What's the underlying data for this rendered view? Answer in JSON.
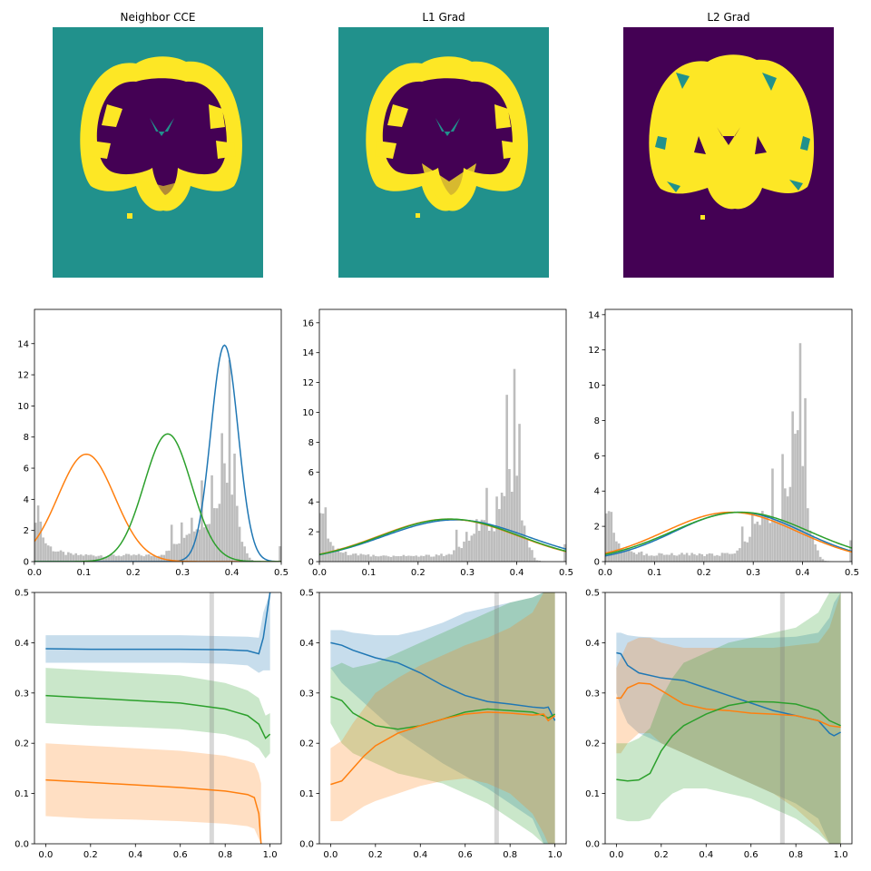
{
  "colors": {
    "blue": "#1f77b4",
    "orange": "#ff7f0e",
    "green": "#2ca02c",
    "hist": "#bdbdbd",
    "teal": "#21918c",
    "purple": "#440154",
    "yellow": "#fde725"
  },
  "images": [
    {
      "title": "Neighbor CCE",
      "background": "teal"
    },
    {
      "title": "L1 Grad",
      "background": "teal"
    },
    {
      "title": "L2 Grad",
      "background": "purple"
    }
  ],
  "chart_data": [
    {
      "type": "histogram",
      "panel": "Neighbor CCE",
      "xlim": [
        0,
        0.5
      ],
      "ylim": [
        0,
        16.2
      ],
      "xticks": [
        "0.0",
        "0.1",
        "0.2",
        "0.3",
        "0.4",
        "0.5"
      ],
      "yticks": [
        "0",
        "2",
        "4",
        "6",
        "8",
        "10",
        "12",
        "14"
      ],
      "gaussians": [
        {
          "color": "blue",
          "mean": 0.385,
          "sd": 0.0275,
          "peak": 13.9
        },
        {
          "color": "orange",
          "mean": 0.105,
          "sd": 0.0575,
          "peak": 6.9
        },
        {
          "color": "green",
          "mean": 0.27,
          "sd": 0.048,
          "peak": 8.2
        }
      ]
    },
    {
      "type": "histogram",
      "panel": "L1 Grad",
      "xlim": [
        0,
        0.5
      ],
      "ylim": [
        0,
        16.9
      ],
      "xticks": [
        "0.0",
        "0.1",
        "0.2",
        "0.3",
        "0.4",
        "0.5"
      ],
      "yticks": [
        "0",
        "2",
        "4",
        "6",
        "8",
        "10",
        "12",
        "14",
        "16"
      ],
      "gaussians": [
        {
          "color": "blue",
          "mean": 0.275,
          "sd": 0.145,
          "peak": 2.8
        },
        {
          "color": "orange",
          "mean": 0.262,
          "sd": 0.14,
          "peak": 2.85
        },
        {
          "color": "green",
          "mean": 0.265,
          "sd": 0.14,
          "peak": 2.85
        }
      ]
    },
    {
      "type": "histogram",
      "panel": "L2 Grad",
      "xlim": [
        0,
        0.5
      ],
      "ylim": [
        0,
        14.3
      ],
      "xticks": [
        "0.0",
        "0.1",
        "0.2",
        "0.3",
        "0.4",
        "0.5"
      ],
      "yticks": [
        "0",
        "2",
        "4",
        "6",
        "8",
        "10",
        "12",
        "14"
      ],
      "gaussians": [
        {
          "color": "blue",
          "mean": 0.27,
          "sd": 0.13,
          "peak": 2.8
        },
        {
          "color": "orange",
          "mean": 0.255,
          "sd": 0.135,
          "peak": 2.8
        },
        {
          "color": "green",
          "mean": 0.275,
          "sd": 0.14,
          "peak": 2.8
        }
      ]
    },
    {
      "type": "line",
      "panel": "Neighbor CCE",
      "xlim": [
        -0.05,
        1.05
      ],
      "ylim": [
        0,
        0.5
      ],
      "xticks": [
        "0.0",
        "0.2",
        "0.4",
        "0.6",
        "0.8",
        "1.0"
      ],
      "yticks": [
        "0.0",
        "0.1",
        "0.2",
        "0.3",
        "0.4",
        "0.5"
      ],
      "vline": 0.74,
      "series": [
        {
          "color": "blue",
          "x": [
            0,
            0.2,
            0.4,
            0.6,
            0.8,
            0.9,
            0.95,
            0.97,
            1.0
          ],
          "y": [
            0.388,
            0.387,
            0.387,
            0.387,
            0.386,
            0.384,
            0.378,
            0.41,
            0.5
          ],
          "lo": [
            0.36,
            0.36,
            0.36,
            0.36,
            0.358,
            0.355,
            0.34,
            0.345,
            0.345
          ],
          "hi": [
            0.415,
            0.415,
            0.415,
            0.415,
            0.413,
            0.412,
            0.41,
            0.46,
            0.5
          ]
        },
        {
          "color": "green",
          "x": [
            0,
            0.2,
            0.4,
            0.6,
            0.8,
            0.9,
            0.95,
            0.98,
            1.0
          ],
          "y": [
            0.295,
            0.29,
            0.285,
            0.28,
            0.268,
            0.255,
            0.238,
            0.21,
            0.218
          ],
          "lo": [
            0.24,
            0.235,
            0.232,
            0.228,
            0.218,
            0.205,
            0.19,
            0.17,
            0.18
          ],
          "hi": [
            0.35,
            0.345,
            0.34,
            0.335,
            0.32,
            0.305,
            0.29,
            0.255,
            0.26
          ]
        },
        {
          "color": "orange",
          "x": [
            0,
            0.2,
            0.4,
            0.6,
            0.8,
            0.9,
            0.93,
            0.95,
            0.96
          ],
          "y": [
            0.127,
            0.122,
            0.117,
            0.112,
            0.105,
            0.098,
            0.092,
            0.06,
            0.0
          ],
          "lo": [
            0.055,
            0.05,
            0.048,
            0.045,
            0.04,
            0.035,
            0.03,
            0.01,
            0.0
          ],
          "hi": [
            0.2,
            0.195,
            0.19,
            0.185,
            0.175,
            0.165,
            0.16,
            0.14,
            0.12
          ]
        }
      ]
    },
    {
      "type": "line",
      "panel": "L1 Grad",
      "xlim": [
        -0.05,
        1.05
      ],
      "ylim": [
        0,
        0.5
      ],
      "xticks": [
        "0.0",
        "0.2",
        "0.4",
        "0.6",
        "0.8",
        "1.0"
      ],
      "yticks": [
        "0.0",
        "0.1",
        "0.2",
        "0.3",
        "0.4",
        "0.5"
      ],
      "vline": 0.74,
      "series": [
        {
          "color": "blue",
          "x": [
            0,
            0.05,
            0.1,
            0.2,
            0.3,
            0.4,
            0.5,
            0.6,
            0.7,
            0.8,
            0.9,
            0.95,
            0.97,
            1.0
          ],
          "y": [
            0.4,
            0.395,
            0.385,
            0.37,
            0.36,
            0.34,
            0.315,
            0.295,
            0.283,
            0.278,
            0.272,
            0.27,
            0.272,
            0.245
          ],
          "lo": [
            0.35,
            0.32,
            0.3,
            0.26,
            0.22,
            0.19,
            0.16,
            0.135,
            0.11,
            0.08,
            0.05,
            0.0,
            0.0,
            0.0
          ],
          "hi": [
            0.425,
            0.425,
            0.42,
            0.415,
            0.415,
            0.425,
            0.44,
            0.46,
            0.47,
            0.48,
            0.49,
            0.5,
            0.5,
            0.5
          ]
        },
        {
          "color": "green",
          "x": [
            0,
            0.05,
            0.1,
            0.2,
            0.3,
            0.4,
            0.5,
            0.6,
            0.7,
            0.8,
            0.9,
            0.95,
            0.97,
            1.0
          ],
          "y": [
            0.293,
            0.285,
            0.26,
            0.235,
            0.228,
            0.235,
            0.248,
            0.262,
            0.268,
            0.265,
            0.262,
            0.255,
            0.25,
            0.258
          ],
          "lo": [
            0.24,
            0.2,
            0.18,
            0.16,
            0.14,
            0.13,
            0.12,
            0.1,
            0.08,
            0.05,
            0.02,
            0.0,
            0.0,
            0.0
          ],
          "hi": [
            0.35,
            0.36,
            0.35,
            0.36,
            0.38,
            0.4,
            0.42,
            0.44,
            0.46,
            0.48,
            0.49,
            0.5,
            0.5,
            0.5
          ]
        },
        {
          "color": "orange",
          "x": [
            0,
            0.05,
            0.1,
            0.15,
            0.2,
            0.3,
            0.4,
            0.5,
            0.6,
            0.7,
            0.8,
            0.9,
            0.95,
            0.97,
            1.0
          ],
          "y": [
            0.118,
            0.125,
            0.15,
            0.175,
            0.195,
            0.22,
            0.235,
            0.248,
            0.258,
            0.262,
            0.26,
            0.256,
            0.258,
            0.245,
            0.255
          ],
          "lo": [
            0.045,
            0.045,
            0.06,
            0.075,
            0.085,
            0.1,
            0.115,
            0.125,
            0.13,
            0.12,
            0.1,
            0.06,
            0.02,
            0.0,
            0.0
          ],
          "hi": [
            0.19,
            0.205,
            0.24,
            0.27,
            0.3,
            0.33,
            0.355,
            0.375,
            0.395,
            0.41,
            0.43,
            0.46,
            0.5,
            0.5,
            0.5
          ]
        }
      ]
    },
    {
      "type": "line",
      "panel": "L2 Grad",
      "xlim": [
        -0.05,
        1.05
      ],
      "ylim": [
        0,
        0.5
      ],
      "xticks": [
        "0.0",
        "0.2",
        "0.4",
        "0.6",
        "0.8",
        "1.0"
      ],
      "yticks": [
        "0.0",
        "0.1",
        "0.2",
        "0.3",
        "0.4",
        "0.5"
      ],
      "vline": 0.74,
      "series": [
        {
          "color": "blue",
          "x": [
            0,
            0.02,
            0.05,
            0.1,
            0.2,
            0.3,
            0.4,
            0.5,
            0.6,
            0.7,
            0.8,
            0.9,
            0.95,
            0.97,
            1.0
          ],
          "y": [
            0.38,
            0.378,
            0.355,
            0.34,
            0.33,
            0.325,
            0.31,
            0.295,
            0.28,
            0.265,
            0.255,
            0.245,
            0.22,
            0.215,
            0.222
          ],
          "lo": [
            0.3,
            0.27,
            0.24,
            0.22,
            0.2,
            0.18,
            0.16,
            0.14,
            0.12,
            0.1,
            0.08,
            0.05,
            0.0,
            0.0,
            0.0
          ],
          "hi": [
            0.42,
            0.42,
            0.415,
            0.412,
            0.41,
            0.41,
            0.41,
            0.41,
            0.41,
            0.41,
            0.412,
            0.42,
            0.45,
            0.48,
            0.5
          ]
        },
        {
          "color": "orange",
          "x": [
            0,
            0.02,
            0.05,
            0.1,
            0.15,
            0.2,
            0.3,
            0.4,
            0.5,
            0.6,
            0.7,
            0.8,
            0.9,
            0.95,
            1.0
          ],
          "y": [
            0.29,
            0.29,
            0.31,
            0.32,
            0.318,
            0.305,
            0.278,
            0.268,
            0.265,
            0.26,
            0.258,
            0.255,
            0.245,
            0.235,
            0.232
          ],
          "lo": [
            0.18,
            0.18,
            0.2,
            0.22,
            0.22,
            0.2,
            0.18,
            0.16,
            0.14,
            0.12,
            0.1,
            0.07,
            0.03,
            0.0,
            0.0
          ],
          "hi": [
            0.35,
            0.37,
            0.4,
            0.41,
            0.41,
            0.4,
            0.39,
            0.39,
            0.39,
            0.39,
            0.39,
            0.395,
            0.4,
            0.43,
            0.5
          ]
        },
        {
          "color": "green",
          "x": [
            0,
            0.05,
            0.1,
            0.15,
            0.2,
            0.25,
            0.3,
            0.4,
            0.5,
            0.6,
            0.7,
            0.8,
            0.9,
            0.95,
            1.0
          ],
          "y": [
            0.128,
            0.125,
            0.127,
            0.14,
            0.185,
            0.215,
            0.235,
            0.258,
            0.275,
            0.283,
            0.282,
            0.278,
            0.265,
            0.245,
            0.235
          ],
          "lo": [
            0.05,
            0.045,
            0.045,
            0.05,
            0.08,
            0.1,
            0.11,
            0.11,
            0.1,
            0.09,
            0.07,
            0.05,
            0.02,
            0.0,
            0.0
          ],
          "hi": [
            0.2,
            0.2,
            0.21,
            0.23,
            0.29,
            0.33,
            0.36,
            0.38,
            0.4,
            0.41,
            0.42,
            0.43,
            0.46,
            0.5,
            0.5
          ]
        }
      ]
    }
  ]
}
